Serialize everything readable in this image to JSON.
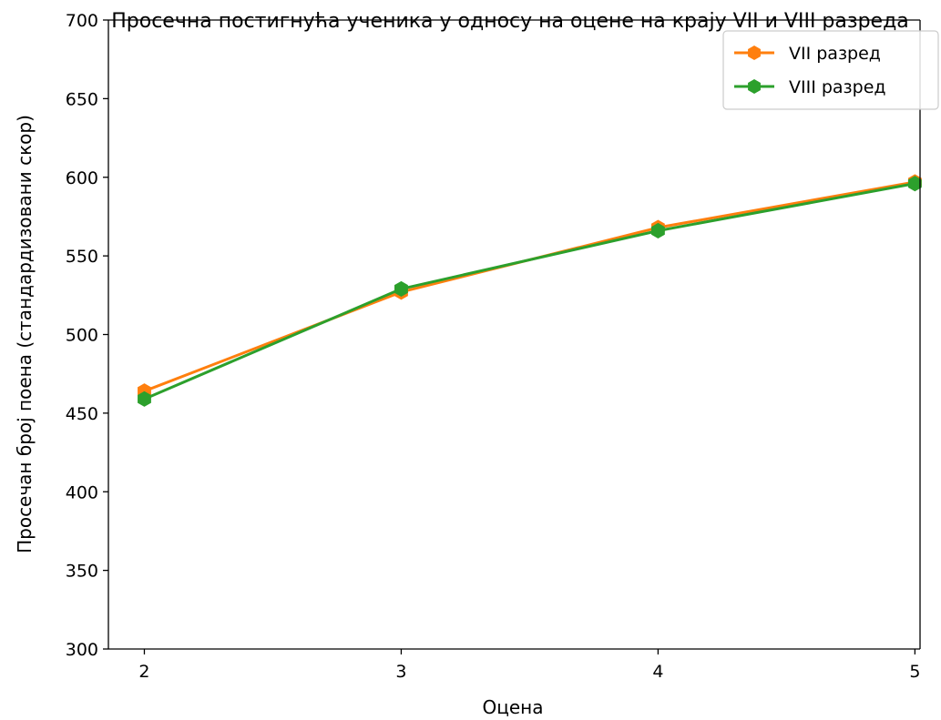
{
  "chart_data": {
    "type": "line",
    "title": "Просечна постигнућа ученика у односу на оцене на крају VII и VIII разреда",
    "xlabel": "Оцена",
    "ylabel": "Просечан број поена (стандардизовани скор)",
    "x": [
      2,
      3,
      4,
      5
    ],
    "x_tick_labels": [
      "2",
      "3",
      "4",
      "5"
    ],
    "xlim": [
      1.86,
      5.02
    ],
    "ylim": [
      300,
      700
    ],
    "y_ticks": [
      300,
      350,
      400,
      450,
      500,
      550,
      600,
      650,
      700
    ],
    "y_tick_labels": [
      "300",
      "350",
      "400",
      "450",
      "500",
      "550",
      "600",
      "650",
      "700"
    ],
    "grid": false,
    "legend_position": "top-right",
    "series": [
      {
        "name": "VII разред",
        "color": "#ff7f0e",
        "marker": "hexagon",
        "values": [
          464,
          527,
          568,
          597
        ]
      },
      {
        "name": "VIII разред",
        "color": "#2ca02c",
        "marker": "hexagon",
        "values": [
          459,
          529,
          566,
          596
        ]
      }
    ]
  }
}
